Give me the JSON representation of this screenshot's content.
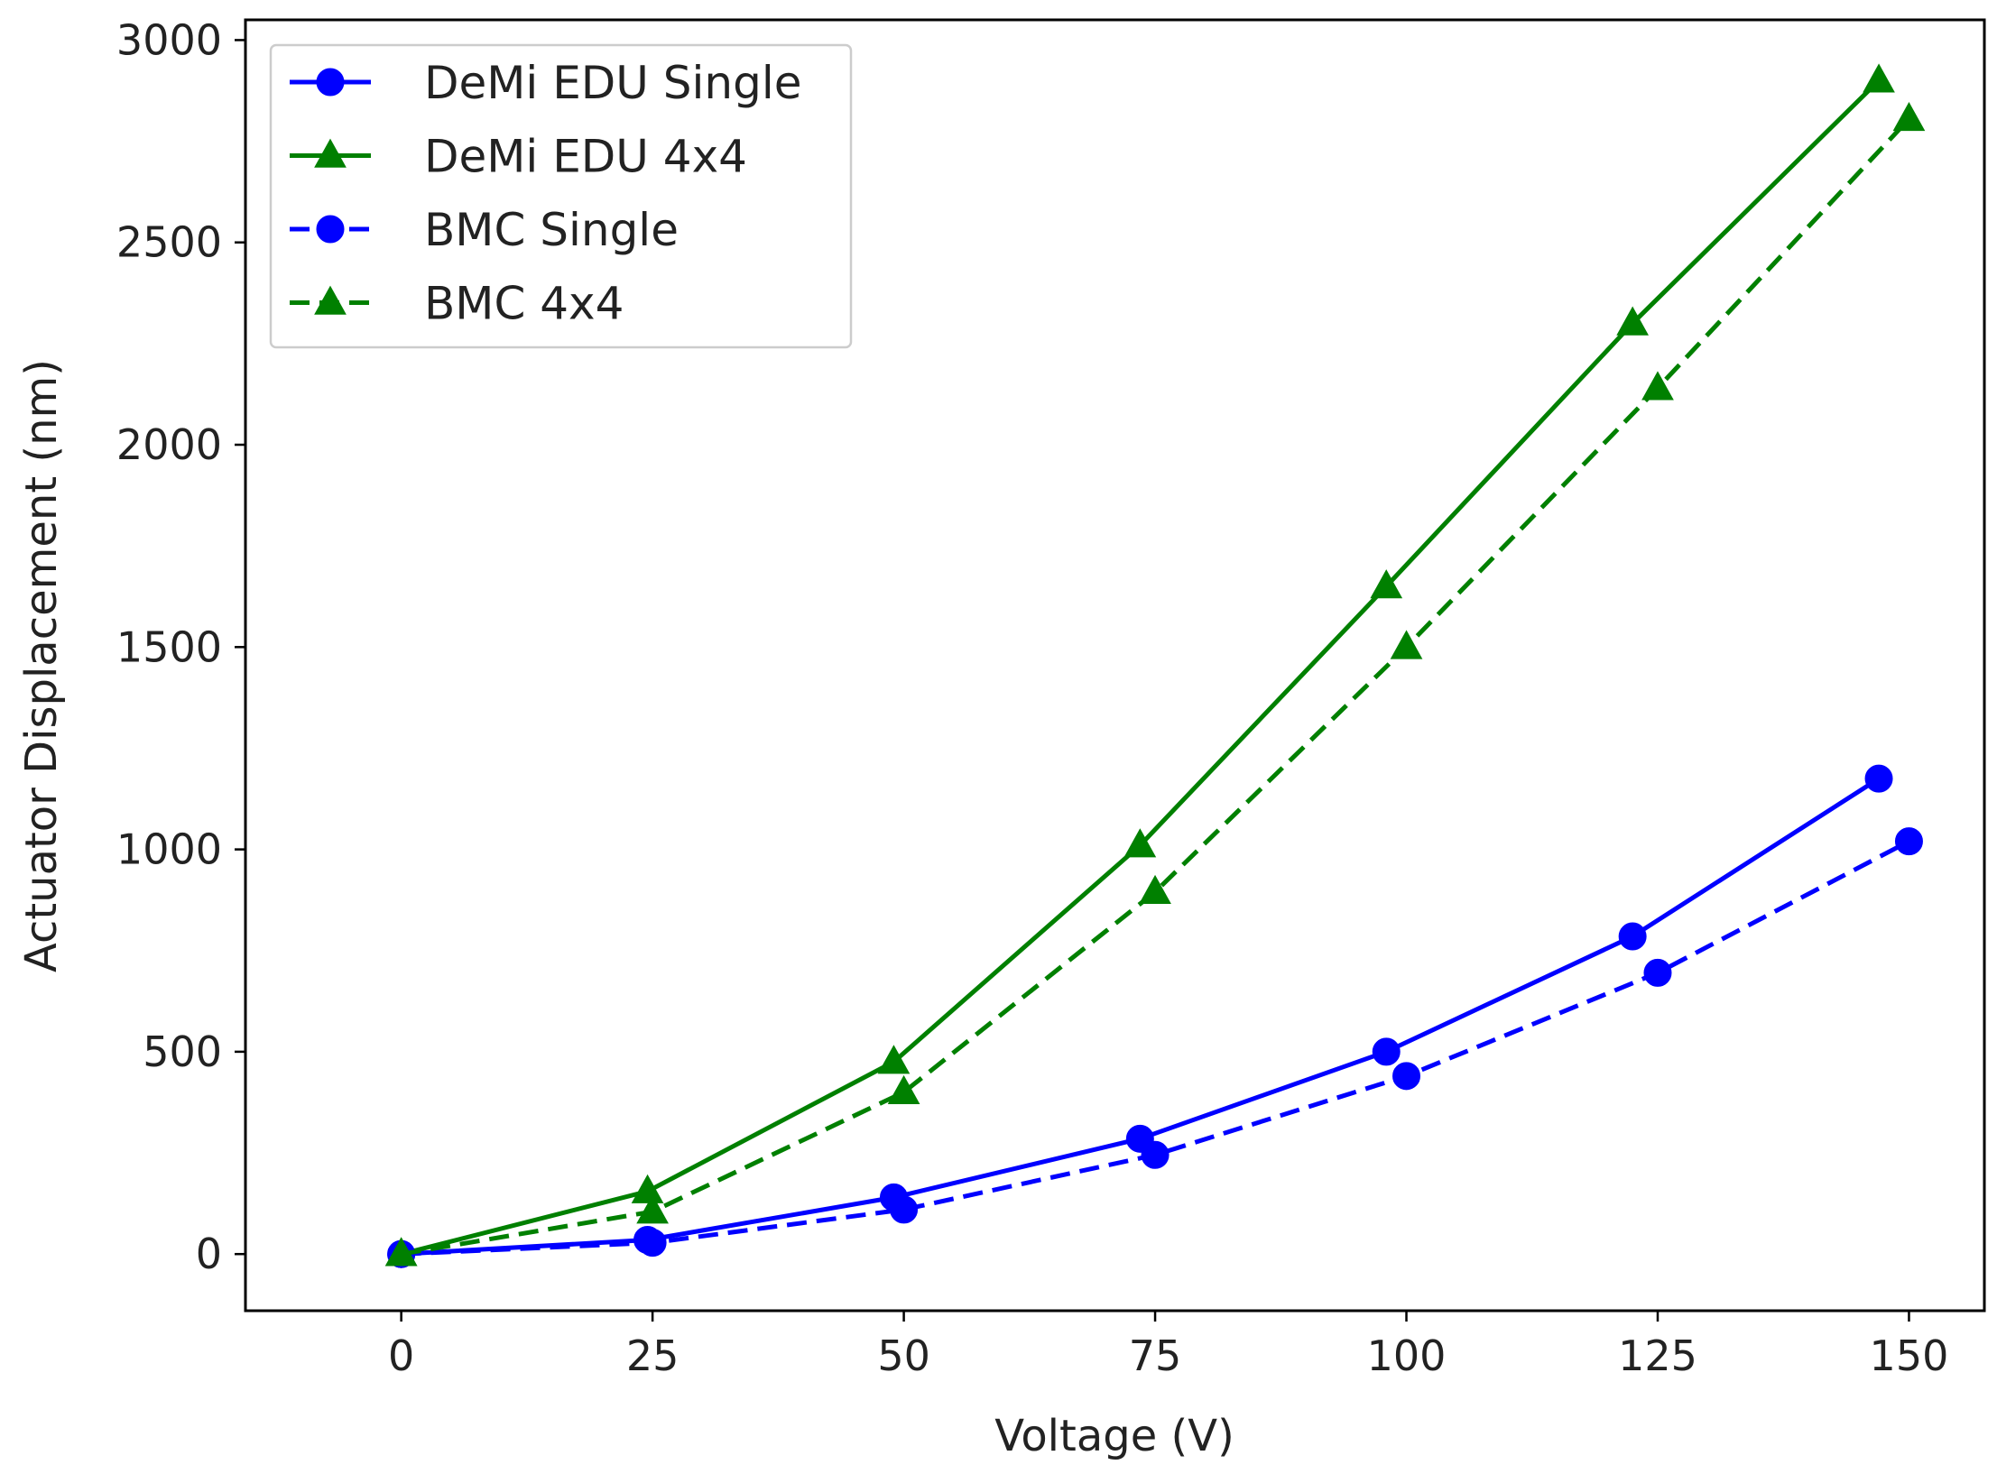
{
  "chart_data": {
    "type": "line",
    "title": "",
    "xlabel": "Voltage (V)",
    "ylabel": "Actuator Displacement (nm)",
    "xlim": [
      -15.5,
      157.5
    ],
    "ylim": [
      -140,
      3050
    ],
    "xticks": [
      0,
      25,
      50,
      75,
      100,
      125,
      150
    ],
    "yticks": [
      0,
      500,
      1000,
      1500,
      2000,
      2500,
      3000
    ],
    "grid": false,
    "legend_position": "top-left",
    "series": [
      {
        "name": "DeMi EDU Single",
        "color": "#0000ff",
        "marker": "circle",
        "linestyle": "solid",
        "x": [
          0,
          24.5,
          49,
          73.5,
          98,
          122.5,
          147
        ],
        "y": [
          0,
          35,
          140,
          285,
          500,
          785,
          1175
        ]
      },
      {
        "name": "DeMi EDU 4x4",
        "color": "#008000",
        "marker": "triangle",
        "linestyle": "solid",
        "x": [
          0,
          24.5,
          49,
          73.5,
          98,
          122.5,
          147
        ],
        "y": [
          0,
          155,
          475,
          1010,
          1650,
          2300,
          2900
        ]
      },
      {
        "name": "BMC Single",
        "color": "#0000ff",
        "marker": "circle",
        "linestyle": "dashed",
        "x": [
          0,
          25,
          50,
          75,
          100,
          125,
          150
        ],
        "y": [
          0,
          28,
          110,
          245,
          440,
          695,
          1020
        ]
      },
      {
        "name": "BMC 4x4",
        "color": "#008000",
        "marker": "triangle",
        "linestyle": "dashed",
        "x": [
          0,
          25,
          50,
          75,
          100,
          125,
          150
        ],
        "y": [
          0,
          105,
          400,
          895,
          1500,
          2140,
          2805
        ]
      }
    ]
  }
}
